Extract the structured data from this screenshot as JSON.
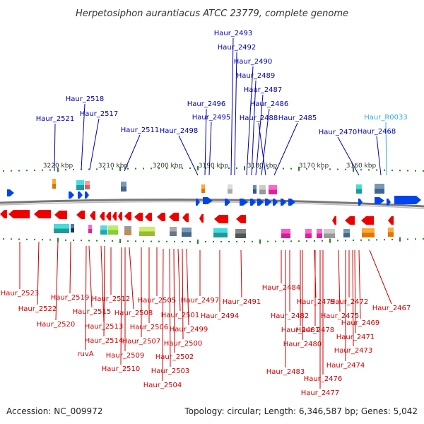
{
  "title": "Herpetosiphon aurantiacus ATCC 23779, complete genome",
  "footer": {
    "accession": "Accession: NC_009972",
    "summary": "Topology: circular; Length: 6,346,587 bp; Genes: 5,042"
  },
  "colors": {
    "top_label": "#0000aa",
    "rna_label": "#33aadd",
    "bottom_label": "#cc0000",
    "plus_strand": "#0044ee",
    "minus_strand": "#ee0000",
    "tick": "#228822",
    "backbone": "#777777"
  },
  "kbp_ticks": [
    "3220 kbp",
    "3210 kbp",
    "3200 kbp",
    "3190 kbp",
    "3180 kbp",
    "3170 kbp",
    "3160 kbp"
  ],
  "top_labels": [
    {
      "text": "Haur_2493"
    },
    {
      "text": "Haur_2492"
    },
    {
      "text": "Haur_2490"
    },
    {
      "text": "Haur_2489"
    },
    {
      "text": "Haur_2487"
    },
    {
      "text": "Haur_2486"
    },
    {
      "text": "Haur_2488"
    },
    {
      "text": "Haur_2485"
    },
    {
      "text": "Haur_2496"
    },
    {
      "text": "Haur_2495"
    },
    {
      "text": "Haur_2498"
    },
    {
      "text": "Haur_2511"
    },
    {
      "text": "Haur_2518"
    },
    {
      "text": "Haur_2517"
    },
    {
      "text": "Haur_2521"
    },
    {
      "text": "Haur_R0033",
      "rna": true
    },
    {
      "text": "Haur_2468"
    },
    {
      "text": "Haur_2470"
    }
  ],
  "bottom_labels": [
    {
      "text": "Haur_2523"
    },
    {
      "text": "Haur_2522"
    },
    {
      "text": "Haur_2520"
    },
    {
      "text": "Haur_2519"
    },
    {
      "text": "Haur_2515"
    },
    {
      "text": "Haur_2513"
    },
    {
      "text": "Haur_2514"
    },
    {
      "text": "ruvA"
    },
    {
      "text": "Haur_2512"
    },
    {
      "text": "Haur_2508"
    },
    {
      "text": "Haur_2507"
    },
    {
      "text": "Haur_2509"
    },
    {
      "text": "Haur_2510"
    },
    {
      "text": "Haur_2506"
    },
    {
      "text": "Haur_2505"
    },
    {
      "text": "Haur_2501"
    },
    {
      "text": "Haur_2499"
    },
    {
      "text": "Haur_2500"
    },
    {
      "text": "Haur_2502"
    },
    {
      "text": "Haur_2503"
    },
    {
      "text": "Haur_2504"
    },
    {
      "text": "Haur_2497"
    },
    {
      "text": "Haur_2494"
    },
    {
      "text": "Haur_2491"
    },
    {
      "text": "Haur_2484"
    },
    {
      "text": "Haur_2482"
    },
    {
      "text": "Haur_2481"
    },
    {
      "text": "Haur_2480"
    },
    {
      "text": "Haur_2483"
    },
    {
      "text": "Haur_2479"
    },
    {
      "text": "Haur_2478"
    },
    {
      "text": "Haur_2475"
    },
    {
      "text": "Haur_2476"
    },
    {
      "text": "Haur_2477"
    },
    {
      "text": "Haur_2472"
    },
    {
      "text": "Haur_2471"
    },
    {
      "text": "Haur_2473"
    },
    {
      "text": "Haur_2474"
    },
    {
      "text": "Haur_2469"
    },
    {
      "text": "Haur_2467"
    }
  ]
}
